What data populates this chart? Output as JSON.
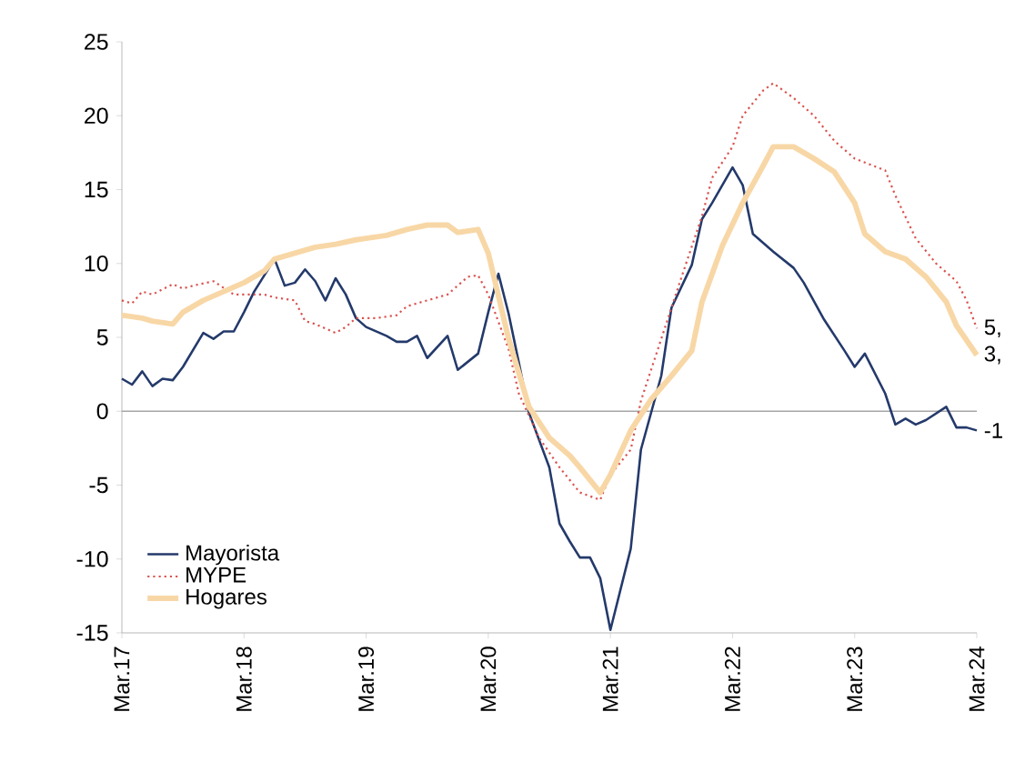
{
  "chart_data": {
    "type": "line",
    "xlim": [
      "2017-03",
      "2024-03"
    ],
    "xticks": [
      {
        "value": "2017-03",
        "label": "Mar.17"
      },
      {
        "value": "2018-03",
        "label": "Mar.18"
      },
      {
        "value": "2019-03",
        "label": "Mar.19"
      },
      {
        "value": "2020-03",
        "label": "Mar.20"
      },
      {
        "value": "2021-03",
        "label": "Mar.21"
      },
      {
        "value": "2022-03",
        "label": "Mar.22"
      },
      {
        "value": "2023-03",
        "label": "Mar.23"
      },
      {
        "value": "2024-03",
        "label": "Mar.24"
      }
    ],
    "ylim": [
      -15,
      25
    ],
    "yticks": [
      -15,
      -10,
      -5,
      0,
      5,
      10,
      15,
      20,
      25
    ],
    "grid": false,
    "legend": "bottom left",
    "marker": "none",
    "ref_lines": [
      {
        "axis": "y",
        "value": 0,
        "color": "#a6a6a6"
      }
    ],
    "annotations": [
      {
        "text": "5,",
        "x": "2024-03",
        "y": 5.6
      },
      {
        "text": "3,",
        "x": "2024-03",
        "y": 3.8
      },
      {
        "text": "-1",
        "x": "2024-03",
        "y": -1.3
      }
    ],
    "series": [
      {
        "name": "Mayorista",
        "color": "#243a6b",
        "line_style": "solid",
        "x": [
          "2017-03",
          "2017-04",
          "2017-05",
          "2017-06",
          "2017-07",
          "2017-08",
          "2017-09",
          "2017-11",
          "2017-12",
          "2018-01",
          "2018-02",
          "2018-03",
          "2018-04",
          "2018-06",
          "2018-07",
          "2018-08",
          "2018-09",
          "2018-10",
          "2018-11",
          "2018-12",
          "2019-01",
          "2019-02",
          "2019-03",
          "2019-05",
          "2019-06",
          "2019-07",
          "2019-08",
          "2019-09",
          "2019-11",
          "2019-12",
          "2020-02",
          "2020-03",
          "2020-04",
          "2020-05",
          "2020-06",
          "2020-07",
          "2020-09",
          "2020-10",
          "2020-11",
          "2020-12",
          "2021-01",
          "2021-02",
          "2021-03",
          "2021-05",
          "2021-06",
          "2021-08",
          "2021-09",
          "2021-11",
          "2021-12",
          "2022-01",
          "2022-03",
          "2022-04",
          "2022-05",
          "2022-07",
          "2022-09",
          "2022-10",
          "2022-12",
          "2023-02",
          "2023-03",
          "2023-04",
          "2023-06",
          "2023-07",
          "2023-08",
          "2023-09",
          "2023-10",
          "2023-12",
          "2024-01",
          "2024-02",
          "2024-03"
        ],
        "values": [
          2.2,
          1.8,
          2.7,
          1.7,
          2.2,
          2.1,
          3.0,
          5.3,
          4.9,
          5.4,
          5.4,
          6.7,
          8.1,
          10.3,
          8.5,
          8.7,
          9.6,
          8.8,
          7.5,
          9.0,
          7.9,
          6.3,
          5.7,
          5.1,
          4.7,
          4.7,
          5.1,
          3.6,
          5.1,
          2.8,
          3.9,
          6.7,
          9.3,
          6.6,
          3.3,
          -0.1,
          -3.8,
          -7.6,
          -8.8,
          -9.9,
          -9.9,
          -11.3,
          -14.8,
          -9.3,
          -2.6,
          2.4,
          7.0,
          9.9,
          13.0,
          14.1,
          16.5,
          15.3,
          12.0,
          10.8,
          9.7,
          8.7,
          6.2,
          4.1,
          3.0,
          3.9,
          1.2,
          -0.9,
          -0.5,
          -0.9,
          -0.6,
          0.3,
          -1.1,
          -1.1,
          -1.3
        ]
      },
      {
        "name": "MYPE",
        "color": "#d9534f",
        "line_style": "dotted",
        "x": [
          "2017-03",
          "2017-04",
          "2017-05",
          "2017-06",
          "2017-08",
          "2017-09",
          "2017-10",
          "2017-12",
          "2018-02",
          "2018-03",
          "2018-05",
          "2018-06",
          "2018-08",
          "2018-09",
          "2018-10",
          "2018-12",
          "2019-01",
          "2019-02",
          "2019-04",
          "2019-06",
          "2019-07",
          "2019-09",
          "2019-11",
          "2020-01",
          "2020-02",
          "2020-03",
          "2020-05",
          "2020-06",
          "2020-08",
          "2020-10",
          "2020-12",
          "2021-02",
          "2021-03",
          "2021-05",
          "2021-06",
          "2021-08",
          "2021-10",
          "2021-12",
          "2022-01",
          "2022-03",
          "2022-04",
          "2022-06",
          "2022-07",
          "2022-09",
          "2022-11",
          "2023-01",
          "2023-03",
          "2023-06",
          "2023-07",
          "2023-09",
          "2023-11",
          "2024-01",
          "2024-02",
          "2024-03"
        ],
        "values": [
          7.5,
          7.3,
          8.1,
          7.9,
          8.6,
          8.3,
          8.5,
          8.8,
          7.9,
          7.9,
          7.9,
          7.7,
          7.5,
          6.1,
          5.9,
          5.3,
          5.7,
          6.3,
          6.3,
          6.5,
          7.1,
          7.5,
          7.9,
          9.1,
          9.2,
          7.9,
          4.2,
          1.2,
          -1.8,
          -3.8,
          -5.5,
          -6.0,
          -4.3,
          -2.6,
          0.7,
          4.9,
          9.1,
          13.2,
          15.8,
          17.9,
          20.0,
          21.7,
          22.2,
          21.2,
          20.0,
          18.3,
          17.1,
          16.3,
          14.6,
          11.7,
          10.0,
          8.8,
          7.5,
          5.6
        ]
      },
      {
        "name": "Hogares",
        "color": "#f8d7a6",
        "line_style": "solid",
        "x": [
          "2017-03",
          "2017-05",
          "2017-06",
          "2017-08",
          "2017-09",
          "2017-11",
          "2018-01",
          "2018-03",
          "2018-05",
          "2018-06",
          "2018-08",
          "2018-10",
          "2018-12",
          "2019-02",
          "2019-03",
          "2019-05",
          "2019-07",
          "2019-09",
          "2019-11",
          "2019-12",
          "2020-02",
          "2020-03",
          "2020-05",
          "2020-07",
          "2020-09",
          "2020-11",
          "2020-12",
          "2021-02",
          "2021-03",
          "2021-05",
          "2021-07",
          "2021-09",
          "2021-11",
          "2021-12",
          "2022-02",
          "2022-04",
          "2022-06",
          "2022-07",
          "2022-09",
          "2022-11",
          "2023-01",
          "2023-03",
          "2023-04",
          "2023-06",
          "2023-08",
          "2023-10",
          "2023-12",
          "2024-01",
          "2024-03"
        ],
        "values": [
          6.5,
          6.3,
          6.1,
          5.9,
          6.7,
          7.5,
          8.1,
          8.7,
          9.5,
          10.3,
          10.7,
          11.1,
          11.3,
          11.6,
          11.7,
          11.9,
          12.3,
          12.6,
          12.6,
          12.1,
          12.3,
          10.7,
          4.9,
          0.3,
          -1.8,
          -3.0,
          -3.8,
          -5.5,
          -4.3,
          -1.3,
          0.8,
          2.4,
          4.1,
          7.4,
          11.2,
          14.1,
          16.6,
          17.9,
          17.9,
          17.1,
          16.2,
          14.1,
          12.0,
          10.8,
          10.3,
          9.1,
          7.4,
          5.8,
          3.8
        ]
      }
    ]
  }
}
